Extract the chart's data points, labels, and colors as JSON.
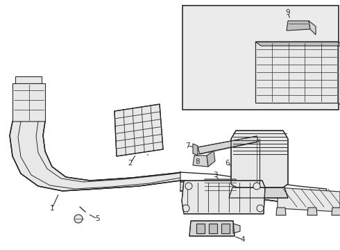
{
  "bg_color": "#ffffff",
  "line_color": "#2a2a2a",
  "fill_light": "#e8e8e8",
  "fill_mid": "#d5d5d5",
  "fill_dark": "#c0c0c0",
  "inset_bg": "#ebebeb",
  "fig_width": 4.9,
  "fig_height": 3.6,
  "dpi": 100
}
